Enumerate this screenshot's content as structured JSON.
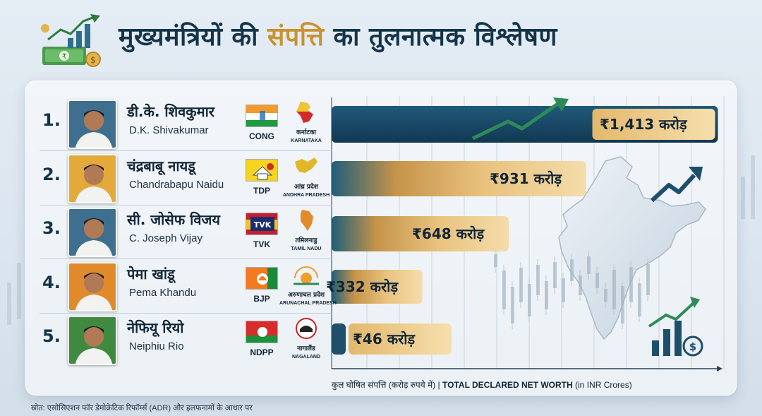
{
  "title": {
    "pre": "मुख्यमंत्रियों की ",
    "accent": "संपत्ति",
    "post": " का तुलनात्मक विश्लेषण"
  },
  "axis_label": {
    "hi": "कुल घोषित संपत्ति (करोड़ रुपये में)",
    "sep": " | ",
    "en_bold": "TOTAL DECLARED NET WORTH",
    "en_unit": " (in INR Crores)"
  },
  "source": "स्रोत: एसोसिएशन फॉर डेमोक्रेटिक रिफॉर्म्स (ADR) और हलफनामों के आधार पर",
  "colors": {
    "navy": "#143a55",
    "teal": "#1f5f7a",
    "gold": "#d9a953",
    "gold_light": "#f3d9a0",
    "accent": "#c9922e",
    "green_arrow": "#2e8b57"
  },
  "chart_data": {
    "type": "bar",
    "orientation": "horizontal",
    "categories": [
      "D.K. Shivakumar",
      "Chandrabapu Naidu",
      "C. Joseph Vijay",
      "Pema Khandu",
      "Neiphiu Rio"
    ],
    "values": [
      1413,
      931,
      648,
      332,
      46
    ],
    "unit": "करोड़",
    "xlabel": "TOTAL DECLARED NET WORTH (in INR Crores)",
    "grid": true
  },
  "rows": [
    {
      "rank": "1.",
      "name_hi": "डी.के. शिवकुमार",
      "name_en": "D.K. Shivakumar",
      "party": "CONG",
      "state_hi": "कर्नाटका",
      "state_en": "KARNATAKA",
      "value_label": "₹1,413 करोड़"
    },
    {
      "rank": "2.",
      "name_hi": "चंद्रबाबू नायडू",
      "name_en": "Chandrabapu Naidu",
      "party": "TDP",
      "state_hi": "आंध्र प्रदेश",
      "state_en": "ANDHRA PRADESH",
      "value_label": "₹931 करोड़"
    },
    {
      "rank": "3.",
      "name_hi": "सी. जोसेफ विजय",
      "name_en": "C. Joseph Vijay",
      "party": "TVK",
      "state_hi": "तमिलनाडु",
      "state_en": "TAMIL NADU",
      "value_label": "₹648 करोड़"
    },
    {
      "rank": "4.",
      "name_hi": "पेमा खांडू",
      "name_en": "Pema Khandu",
      "party": "BJP",
      "state_hi": "अरुणाचल प्रदेश",
      "state_en": "ARUNACHAL PRADESH",
      "value_label": "₹332 करोड़"
    },
    {
      "rank": "5.",
      "name_hi": "नेफियू रियो",
      "name_en": "Neiphiu Rio",
      "party": "NDPP",
      "state_hi": "नागालैंड",
      "state_en": "NAGALAND",
      "value_label": "₹46 करोड़"
    }
  ],
  "tvk_flag_text": "TVK"
}
